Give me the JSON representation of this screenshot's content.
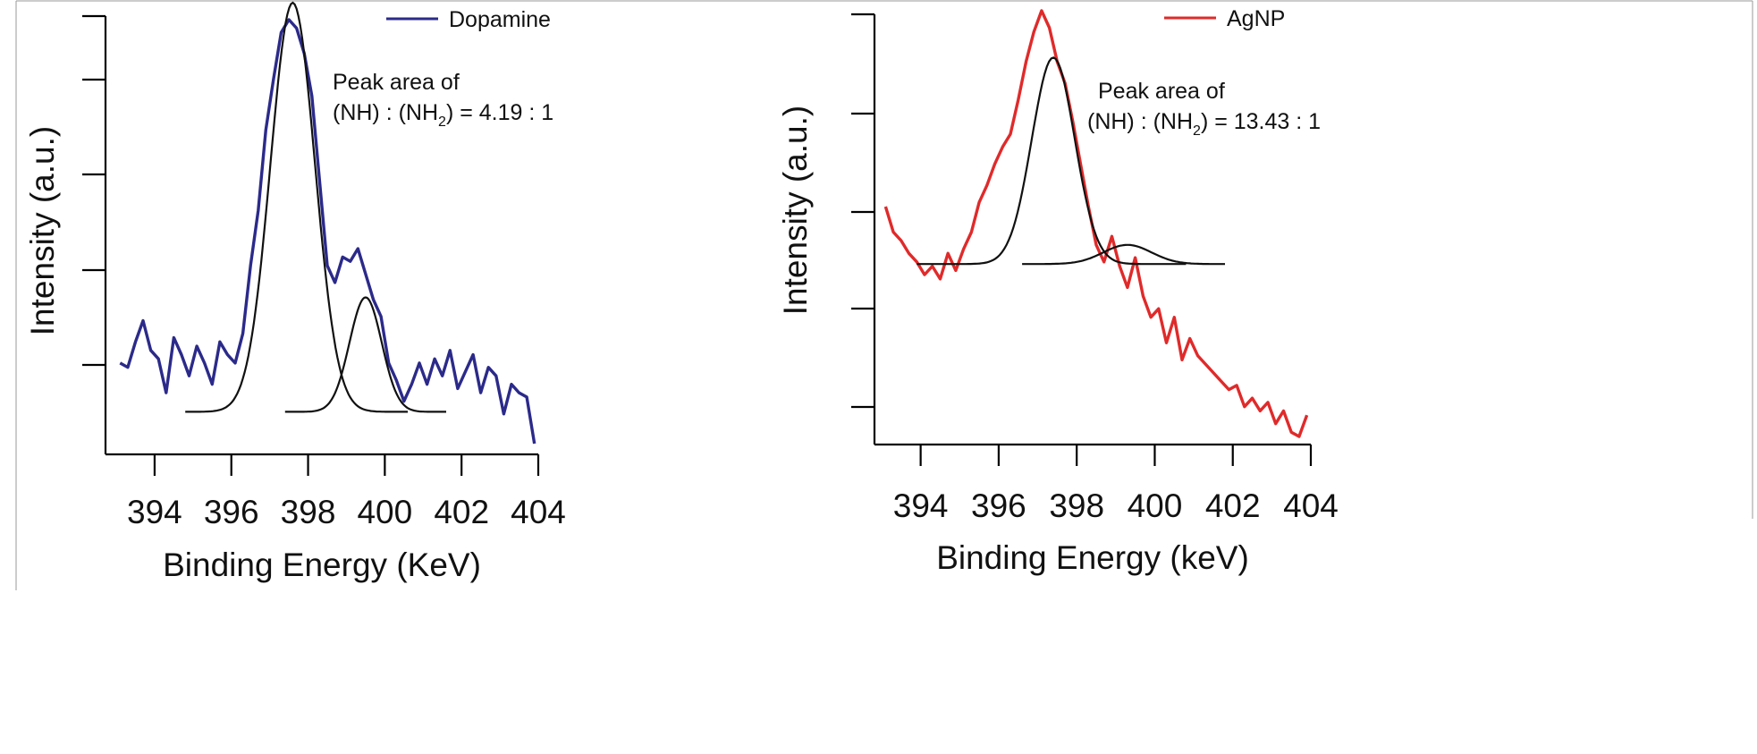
{
  "chart_data": [
    {
      "type": "line",
      "panel": "left",
      "xlabel": "Binding Energy (KeV)",
      "ylabel": "Intensity (a.u.)",
      "xlim": [
        393,
        404
      ],
      "ylim": [
        0,
        1
      ],
      "x_ticks": [
        394,
        396,
        398,
        400,
        402,
        404
      ],
      "y_tick_count": 5,
      "colors": {
        "data": "#2b2a8a",
        "fit": "#111111"
      },
      "legend": {
        "label": "Dopamine",
        "position": "top-right"
      },
      "annotation": {
        "line1": "Peak area of",
        "line2_a": "(NH) : (NH",
        "line2_sub": "2",
        "line2_b": ") = 4.19 : 1"
      },
      "data_x": [
        393.1,
        393.3,
        393.5,
        393.7,
        393.9,
        394.1,
        394.3,
        394.5,
        394.7,
        394.9,
        395.1,
        395.3,
        395.5,
        395.7,
        395.9,
        396.1,
        396.3,
        396.5,
        396.7,
        396.9,
        397.1,
        397.3,
        397.5,
        397.7,
        397.9,
        398.1,
        398.3,
        398.5,
        398.7,
        398.9,
        399.1,
        399.3,
        399.5,
        399.7,
        399.9,
        400.1,
        400.3,
        400.5,
        400.7,
        400.9,
        401.1,
        401.3,
        401.5,
        401.7,
        401.9,
        402.1,
        402.3,
        402.5,
        402.7,
        402.9,
        403.1,
        403.3,
        403.5,
        403.7,
        403.9
      ],
      "data_y": [
        0.19,
        0.18,
        0.24,
        0.29,
        0.22,
        0.2,
        0.12,
        0.25,
        0.21,
        0.16,
        0.23,
        0.19,
        0.14,
        0.24,
        0.21,
        0.19,
        0.26,
        0.42,
        0.55,
        0.74,
        0.86,
        0.97,
        1.0,
        0.98,
        0.92,
        0.82,
        0.62,
        0.42,
        0.38,
        0.44,
        0.43,
        0.46,
        0.4,
        0.34,
        0.3,
        0.19,
        0.15,
        0.1,
        0.14,
        0.19,
        0.14,
        0.2,
        0.16,
        0.22,
        0.13,
        0.17,
        0.21,
        0.12,
        0.18,
        0.16,
        0.07,
        0.14,
        0.12,
        0.11,
        0.0
      ],
      "fits": [
        {
          "center": 397.6,
          "sigma": 0.58,
          "height": 0.965,
          "baseline": 0.075,
          "x_from": 394.8,
          "x_to": 400.6
        },
        {
          "center": 399.5,
          "sigma": 0.42,
          "height": 0.27,
          "baseline": 0.075,
          "x_from": 397.4,
          "x_to": 401.6
        }
      ]
    },
    {
      "type": "line",
      "panel": "right",
      "xlabel": "Binding Energy (keV)",
      "ylabel": "Intensity (a.u.)",
      "xlim": [
        393,
        404
      ],
      "ylim": [
        0,
        1
      ],
      "x_ticks": [
        394,
        396,
        398,
        400,
        402,
        404
      ],
      "y_tick_count": 5,
      "colors": {
        "data": "#e02a2a",
        "fit": "#111111"
      },
      "legend": {
        "label": "AgNP",
        "position": "top-right"
      },
      "annotation": {
        "line1": "Peak area of",
        "line2_a": "(NH) : (NH",
        "line2_sub": "2",
        "line2_b": ") = 13.43 : 1"
      },
      "data_x": [
        393.1,
        393.3,
        393.5,
        393.7,
        393.9,
        394.1,
        394.3,
        394.5,
        394.7,
        394.9,
        395.1,
        395.3,
        395.5,
        395.7,
        395.9,
        396.1,
        396.3,
        396.5,
        396.7,
        396.9,
        397.1,
        397.3,
        397.5,
        397.7,
        397.9,
        398.1,
        398.3,
        398.5,
        398.7,
        398.9,
        399.1,
        399.3,
        399.5,
        399.7,
        399.9,
        400.1,
        400.3,
        400.5,
        400.7,
        400.9,
        401.1,
        401.3,
        401.5,
        401.7,
        401.9,
        402.1,
        402.3,
        402.5,
        402.7,
        402.9,
        403.1,
        403.3,
        403.5,
        403.7,
        403.9
      ],
      "data_y": [
        0.54,
        0.48,
        0.46,
        0.43,
        0.41,
        0.38,
        0.4,
        0.37,
        0.43,
        0.39,
        0.44,
        0.48,
        0.55,
        0.59,
        0.64,
        0.68,
        0.71,
        0.79,
        0.88,
        0.95,
        1.0,
        0.96,
        0.88,
        0.83,
        0.74,
        0.64,
        0.54,
        0.45,
        0.41,
        0.47,
        0.4,
        0.35,
        0.42,
        0.33,
        0.28,
        0.3,
        0.22,
        0.28,
        0.18,
        0.23,
        0.19,
        0.17,
        0.15,
        0.13,
        0.11,
        0.12,
        0.07,
        0.09,
        0.06,
        0.08,
        0.03,
        0.06,
        0.01,
        0.0,
        0.05
      ],
      "fits": [
        {
          "center": 397.4,
          "sigma": 0.55,
          "height": 0.485,
          "baseline": 0.405,
          "x_from": 393.9,
          "x_to": 400.8
        },
        {
          "center": 399.3,
          "sigma": 0.62,
          "height": 0.045,
          "baseline": 0.405,
          "x_from": 396.6,
          "x_to": 401.8
        }
      ]
    }
  ]
}
